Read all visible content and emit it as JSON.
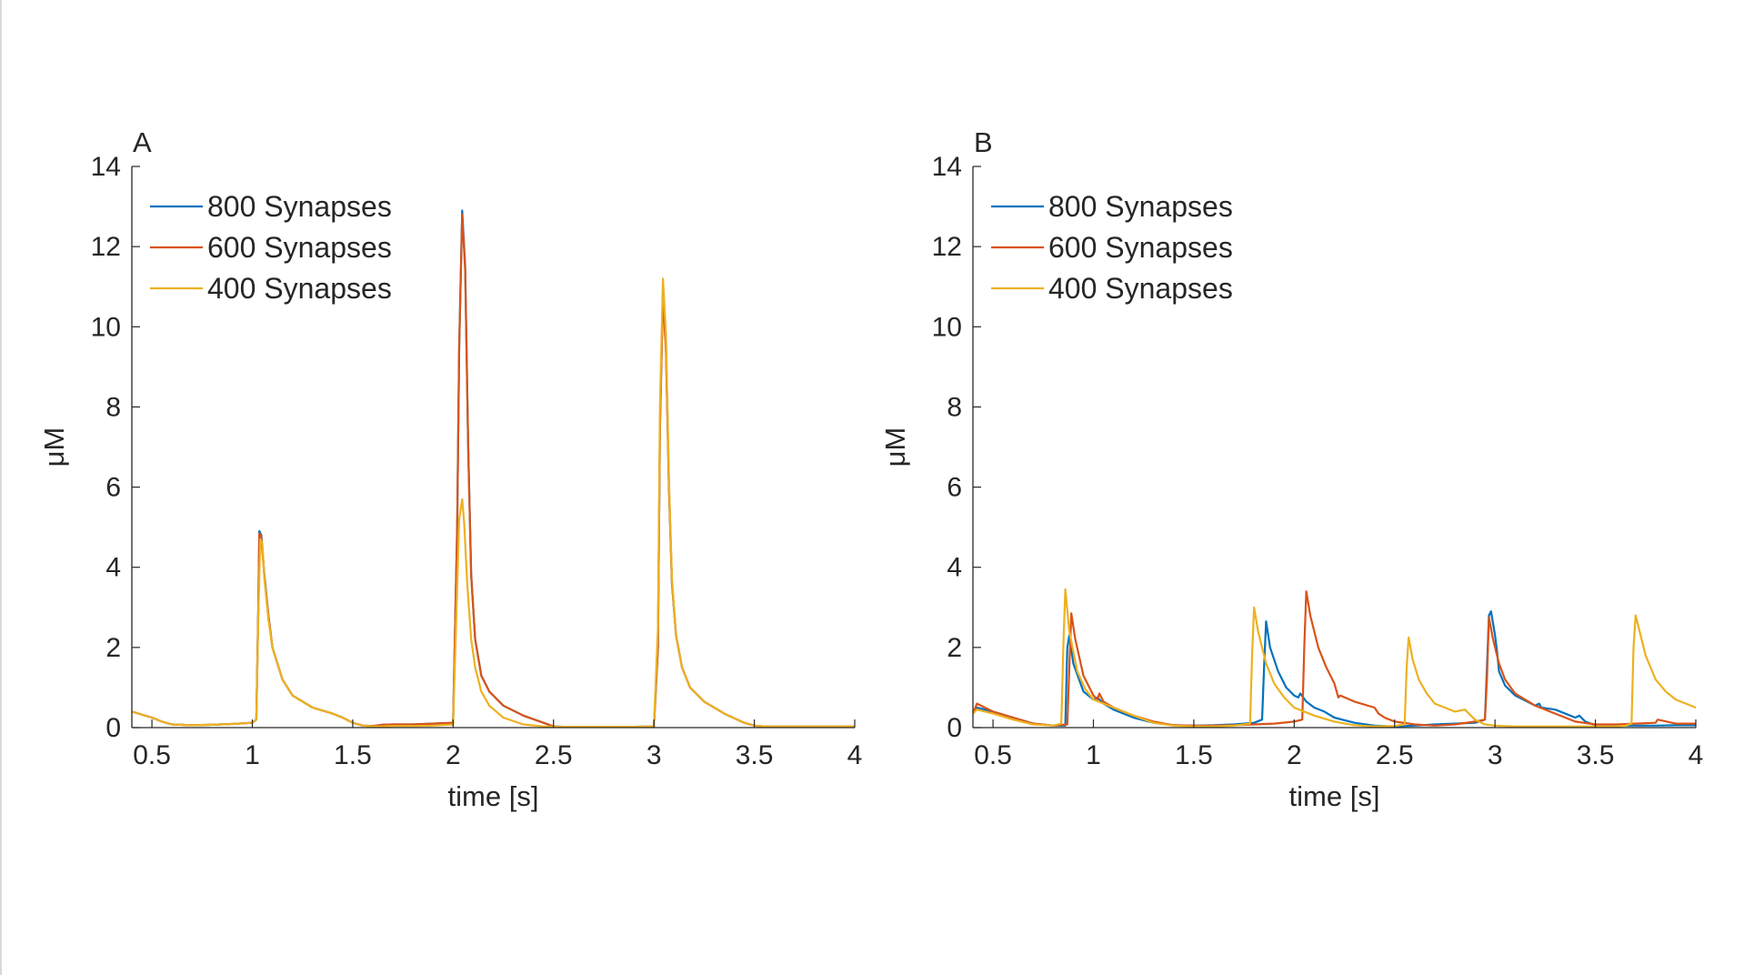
{
  "chart_data": [
    {
      "type": "line",
      "panel_label": "A",
      "xlabel": "time [s]",
      "ylabel": "μM",
      "xlim": [
        0.4,
        4.0
      ],
      "ylim": [
        0,
        14
      ],
      "xticks": [
        0.5,
        1,
        1.5,
        2,
        2.5,
        3,
        3.5,
        4
      ],
      "xtick_labels": [
        "0.5",
        "1",
        "1.5",
        "2",
        "2.5",
        "3",
        "3.5",
        "4"
      ],
      "yticks": [
        0,
        2,
        4,
        6,
        8,
        10,
        12,
        14
      ],
      "ytick_labels": [
        "0",
        "2",
        "4",
        "6",
        "8",
        "10",
        "12",
        "14"
      ],
      "grid": false,
      "legend_position": "top-left",
      "series": [
        {
          "name": "800 Synapses",
          "color": "#0072BD",
          "x": [
            0.4,
            0.5,
            0.55,
            0.6,
            0.7,
            0.8,
            0.9,
            1.0,
            1.02,
            1.03,
            1.035,
            1.045,
            1.06,
            1.08,
            1.1,
            1.15,
            1.2,
            1.3,
            1.4,
            1.45,
            1.5,
            1.55,
            1.6,
            1.65,
            1.7,
            1.8,
            1.9,
            2.0,
            2.02,
            2.03,
            2.045,
            2.06,
            2.075,
            2.09,
            2.11,
            2.14,
            2.18,
            2.25,
            2.35,
            2.45,
            2.5,
            2.55,
            2.6,
            2.7,
            2.8,
            2.9,
            3.0,
            3.02,
            3.03,
            3.045,
            3.06,
            3.075,
            3.09,
            3.11,
            3.14,
            3.18,
            3.25,
            3.35,
            3.45,
            3.5,
            3.55,
            3.6,
            3.7,
            3.8,
            3.9,
            4.0
          ],
          "y": [
            0.4,
            0.25,
            0.15,
            0.08,
            0.06,
            0.07,
            0.09,
            0.12,
            0.2,
            3.0,
            4.9,
            4.8,
            3.8,
            2.8,
            2.0,
            1.2,
            0.8,
            0.5,
            0.35,
            0.25,
            0.12,
            0.05,
            0.04,
            0.07,
            0.08,
            0.08,
            0.1,
            0.12,
            5.0,
            9.5,
            12.9,
            11.5,
            7.0,
            3.8,
            2.2,
            1.3,
            0.9,
            0.55,
            0.3,
            0.12,
            0.03,
            0.02,
            0.02,
            0.02,
            0.02,
            0.02,
            0.03,
            2.0,
            7.5,
            10.9,
            9.5,
            6.0,
            3.6,
            2.3,
            1.5,
            1.0,
            0.65,
            0.35,
            0.12,
            0.05,
            0.03,
            0.03,
            0.03,
            0.03,
            0.03,
            0.03
          ]
        },
        {
          "name": "600 Synapses",
          "color": "#D95319",
          "x": [
            0.4,
            0.5,
            0.55,
            0.6,
            0.7,
            0.8,
            0.9,
            1.0,
            1.02,
            1.03,
            1.035,
            1.045,
            1.06,
            1.08,
            1.1,
            1.15,
            1.2,
            1.3,
            1.4,
            1.45,
            1.5,
            1.55,
            1.6,
            1.65,
            1.7,
            1.8,
            1.9,
            2.0,
            2.02,
            2.03,
            2.045,
            2.06,
            2.075,
            2.09,
            2.11,
            2.14,
            2.18,
            2.25,
            2.35,
            2.45,
            2.5,
            2.55,
            2.6,
            2.7,
            2.8,
            2.9,
            3.0,
            3.02,
            3.03,
            3.045,
            3.06,
            3.075,
            3.09,
            3.11,
            3.14,
            3.18,
            3.25,
            3.35,
            3.45,
            3.5,
            3.55,
            3.6,
            3.7,
            3.8,
            3.9,
            4.0
          ],
          "y": [
            0.4,
            0.25,
            0.15,
            0.08,
            0.06,
            0.07,
            0.09,
            0.12,
            0.2,
            3.0,
            4.85,
            4.75,
            3.75,
            2.8,
            2.0,
            1.2,
            0.8,
            0.5,
            0.35,
            0.25,
            0.12,
            0.05,
            0.04,
            0.07,
            0.08,
            0.08,
            0.1,
            0.12,
            5.0,
            9.5,
            12.8,
            11.4,
            7.0,
            3.8,
            2.2,
            1.3,
            0.9,
            0.55,
            0.3,
            0.12,
            0.03,
            0.02,
            0.02,
            0.02,
            0.02,
            0.02,
            0.03,
            2.0,
            7.5,
            10.8,
            9.4,
            6.0,
            3.6,
            2.3,
            1.5,
            1.0,
            0.65,
            0.35,
            0.12,
            0.05,
            0.03,
            0.03,
            0.03,
            0.03,
            0.03,
            0.03
          ]
        },
        {
          "name": "400 Synapses",
          "color": "#EDB120",
          "x": [
            0.4,
            0.5,
            0.55,
            0.6,
            0.7,
            0.8,
            0.9,
            1.0,
            1.02,
            1.03,
            1.04,
            1.05,
            1.06,
            1.08,
            1.1,
            1.15,
            1.2,
            1.3,
            1.4,
            1.45,
            1.5,
            1.55,
            1.6,
            1.65,
            1.7,
            1.8,
            1.9,
            2.0,
            2.02,
            2.03,
            2.045,
            2.055,
            2.07,
            2.09,
            2.11,
            2.14,
            2.18,
            2.25,
            2.35,
            2.45,
            2.5,
            2.55,
            2.6,
            2.7,
            2.8,
            2.9,
            3.0,
            3.02,
            3.03,
            3.045,
            3.06,
            3.075,
            3.09,
            3.11,
            3.14,
            3.18,
            3.25,
            3.35,
            3.45,
            3.5,
            3.55,
            3.6,
            3.7,
            3.8,
            3.9,
            4.0
          ],
          "y": [
            0.4,
            0.25,
            0.15,
            0.08,
            0.06,
            0.07,
            0.09,
            0.12,
            0.2,
            2.8,
            4.7,
            4.6,
            3.7,
            2.7,
            2.0,
            1.2,
            0.8,
            0.5,
            0.35,
            0.25,
            0.12,
            0.05,
            0.03,
            0.03,
            0.04,
            0.04,
            0.05,
            0.08,
            3.5,
            5.2,
            5.7,
            5.1,
            3.6,
            2.2,
            1.5,
            0.9,
            0.55,
            0.25,
            0.08,
            0.03,
            0.02,
            0.02,
            0.02,
            0.02,
            0.02,
            0.02,
            0.03,
            2.5,
            8.0,
            11.2,
            9.8,
            6.2,
            3.7,
            2.3,
            1.5,
            1.0,
            0.65,
            0.35,
            0.12,
            0.05,
            0.03,
            0.03,
            0.03,
            0.03,
            0.03,
            0.03
          ]
        }
      ]
    },
    {
      "type": "line",
      "panel_label": "B",
      "xlabel": "time [s]",
      "ylabel": "μM",
      "xlim": [
        0.4,
        4.0
      ],
      "ylim": [
        0,
        14
      ],
      "xticks": [
        0.5,
        1,
        1.5,
        2,
        2.5,
        3,
        3.5,
        4
      ],
      "xtick_labels": [
        "0.5",
        "1",
        "1.5",
        "2",
        "2.5",
        "3",
        "3.5",
        "4"
      ],
      "yticks": [
        0,
        2,
        4,
        6,
        8,
        10,
        12,
        14
      ],
      "ytick_labels": [
        "0",
        "2",
        "4",
        "6",
        "8",
        "10",
        "12",
        "14"
      ],
      "grid": false,
      "legend_position": "top-left",
      "series": [
        {
          "name": "800 Synapses",
          "color": "#0072BD",
          "x": [
            0.4,
            0.42,
            0.5,
            0.6,
            0.7,
            0.8,
            0.86,
            0.87,
            0.88,
            0.9,
            0.95,
            1.0,
            1.02,
            1.05,
            1.1,
            1.2,
            1.3,
            1.4,
            1.5,
            1.6,
            1.7,
            1.8,
            1.84,
            1.85,
            1.86,
            1.88,
            1.92,
            1.96,
            2.0,
            2.02,
            2.03,
            2.06,
            2.1,
            2.15,
            2.2,
            2.3,
            2.4,
            2.5,
            2.6,
            2.7,
            2.8,
            2.9,
            2.95,
            2.96,
            2.97,
            2.98,
            3.0,
            3.01,
            3.02,
            3.05,
            3.1,
            3.2,
            3.22,
            3.23,
            3.3,
            3.4,
            3.42,
            3.45,
            3.5,
            3.6,
            3.7,
            3.8,
            3.9,
            4.0
          ],
          "y": [
            0.35,
            0.5,
            0.4,
            0.25,
            0.1,
            0.05,
            0.05,
            2.0,
            2.3,
            1.6,
            0.9,
            0.7,
            0.75,
            0.6,
            0.45,
            0.25,
            0.12,
            0.06,
            0.05,
            0.06,
            0.08,
            0.12,
            0.2,
            1.5,
            2.65,
            2.0,
            1.4,
            1.0,
            0.8,
            0.75,
            0.85,
            0.65,
            0.5,
            0.4,
            0.25,
            0.12,
            0.05,
            0.03,
            0.05,
            0.08,
            0.1,
            0.12,
            0.2,
            1.5,
            2.8,
            2.9,
            2.3,
            1.9,
            1.4,
            1.05,
            0.8,
            0.55,
            0.6,
            0.5,
            0.45,
            0.25,
            0.3,
            0.15,
            0.06,
            0.05,
            0.05,
            0.05,
            0.06,
            0.06
          ]
        },
        {
          "name": "600 Synapses",
          "color": "#D95319",
          "x": [
            0.4,
            0.42,
            0.5,
            0.6,
            0.7,
            0.8,
            0.87,
            0.88,
            0.89,
            0.91,
            0.95,
            1.0,
            1.02,
            1.03,
            1.05,
            1.1,
            1.2,
            1.3,
            1.4,
            1.5,
            1.6,
            1.7,
            1.8,
            1.9,
            2.0,
            2.04,
            2.05,
            2.06,
            2.08,
            2.12,
            2.16,
            2.2,
            2.22,
            2.23,
            2.3,
            2.4,
            2.42,
            2.45,
            2.5,
            2.6,
            2.7,
            2.8,
            2.9,
            2.95,
            2.96,
            2.97,
            2.99,
            3.02,
            3.05,
            3.1,
            3.2,
            3.3,
            3.4,
            3.5,
            3.6,
            3.7,
            3.8,
            3.81,
            3.9,
            4.0
          ],
          "y": [
            0.35,
            0.6,
            0.4,
            0.25,
            0.1,
            0.05,
            0.08,
            1.5,
            2.85,
            2.2,
            1.3,
            0.8,
            0.7,
            0.85,
            0.65,
            0.5,
            0.3,
            0.15,
            0.06,
            0.05,
            0.05,
            0.06,
            0.08,
            0.1,
            0.15,
            0.2,
            2.0,
            3.4,
            2.8,
            2.0,
            1.5,
            1.1,
            0.75,
            0.8,
            0.65,
            0.5,
            0.35,
            0.25,
            0.15,
            0.08,
            0.05,
            0.08,
            0.15,
            0.2,
            1.2,
            2.75,
            2.2,
            1.6,
            1.2,
            0.85,
            0.55,
            0.35,
            0.15,
            0.08,
            0.08,
            0.1,
            0.12,
            0.2,
            0.1,
            0.1
          ]
        },
        {
          "name": "400 Synapses",
          "color": "#EDB120",
          "x": [
            0.4,
            0.42,
            0.5,
            0.6,
            0.7,
            0.8,
            0.84,
            0.85,
            0.86,
            0.88,
            0.92,
            0.96,
            1.0,
            1.1,
            1.2,
            1.3,
            1.4,
            1.5,
            1.6,
            1.7,
            1.78,
            1.79,
            1.8,
            1.82,
            1.86,
            1.9,
            1.95,
            2.0,
            2.1,
            2.2,
            2.3,
            2.4,
            2.5,
            2.55,
            2.56,
            2.57,
            2.59,
            2.62,
            2.66,
            2.7,
            2.75,
            2.8,
            2.85,
            2.9,
            2.95,
            3.0,
            3.1,
            3.2,
            3.3,
            3.4,
            3.5,
            3.6,
            3.65,
            3.68,
            3.69,
            3.7,
            3.72,
            3.75,
            3.8,
            3.85,
            3.9,
            4.0
          ],
          "y": [
            0.35,
            0.45,
            0.35,
            0.2,
            0.08,
            0.05,
            0.1,
            2.0,
            3.45,
            2.4,
            1.4,
            0.95,
            0.7,
            0.5,
            0.3,
            0.12,
            0.05,
            0.03,
            0.03,
            0.05,
            0.1,
            1.8,
            3.0,
            2.4,
            1.6,
            1.1,
            0.75,
            0.5,
            0.3,
            0.15,
            0.06,
            0.03,
            0.04,
            0.08,
            1.5,
            2.25,
            1.7,
            1.2,
            0.85,
            0.6,
            0.5,
            0.4,
            0.45,
            0.2,
            0.08,
            0.05,
            0.03,
            0.03,
            0.03,
            0.03,
            0.03,
            0.03,
            0.05,
            0.1,
            2.0,
            2.8,
            2.4,
            1.8,
            1.2,
            0.9,
            0.7,
            0.5
          ]
        }
      ]
    }
  ]
}
